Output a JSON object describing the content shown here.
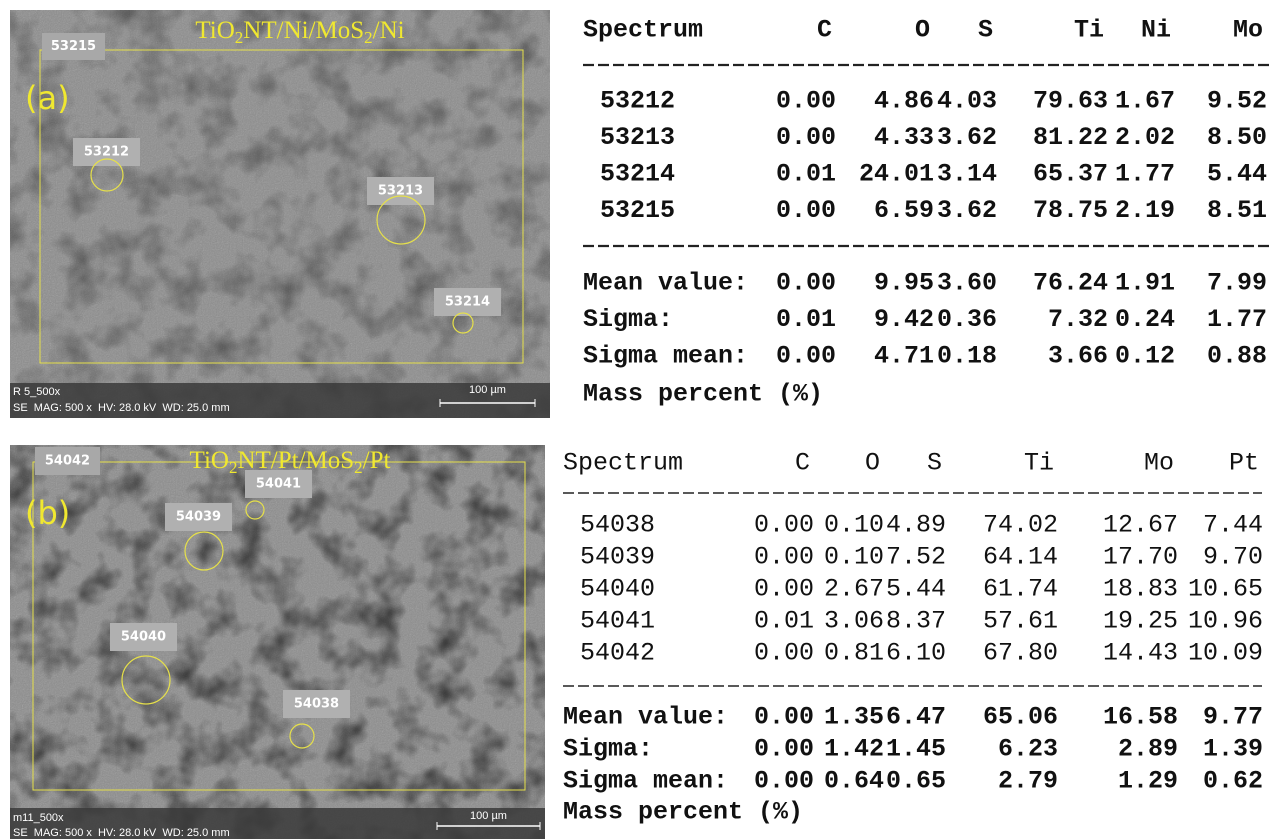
{
  "panels": [
    {
      "label": "(a)",
      "title": [
        "TiO",
        "2",
        "NT/Ni/MoS",
        "2",
        "/Ni"
      ],
      "area_label": "53215",
      "spots": [
        "53212",
        "53213",
        "53214"
      ],
      "scale_bar": "100 µm",
      "info": [
        "R 5_500x",
        "SE  MAG: 500 x  HV: 28.0 kV  WD: 25.0 mm"
      ],
      "table": {
        "columns": [
          "Spectrum",
          "C",
          "O",
          "S",
          "Ti",
          "Ni",
          "Mo"
        ],
        "rows": [
          [
            "53212",
            "0.00",
            "4.86",
            "4.03",
            "79.63",
            "1.67",
            "9.52"
          ],
          [
            "53213",
            "0.00",
            "4.33",
            "3.62",
            "81.22",
            "2.02",
            "8.50"
          ],
          [
            "53214",
            "0.01",
            "24.01",
            "3.14",
            "65.37",
            "1.77",
            "5.44"
          ],
          [
            "53215",
            "0.00",
            "6.59",
            "3.62",
            "78.75",
            "2.19",
            "8.51"
          ]
        ],
        "stats": [
          [
            "Mean value:",
            "0.00",
            "9.95",
            "3.60",
            "76.24",
            "1.91",
            "7.99"
          ],
          [
            "Sigma:",
            "0.01",
            "9.42",
            "0.36",
            "7.32",
            "0.24",
            "1.77"
          ],
          [
            "Sigma mean:",
            "0.00",
            "4.71",
            "0.18",
            "3.66",
            "0.12",
            "0.88"
          ]
        ],
        "footer": "Mass percent (%)"
      }
    },
    {
      "label": "(b)",
      "title": [
        "TiO",
        "2",
        "NT/Pt/MoS",
        "2",
        "/Pt"
      ],
      "area_label": "54042",
      "spots": [
        "54041",
        "54039",
        "54040",
        "54038"
      ],
      "scale_bar": "100 µm",
      "info": [
        "m11_500x",
        "SE  MAG: 500 x  HV: 28.0 kV  WD: 25.0 mm"
      ],
      "table": {
        "columns": [
          "Spectrum",
          "C",
          "O",
          "S",
          "Ti",
          "Mo",
          "Pt"
        ],
        "rows": [
          [
            "54038",
            "0.00",
            "0.10",
            "4.89",
            "74.02",
            "12.67",
            "7.44"
          ],
          [
            "54039",
            "0.00",
            "0.10",
            "7.52",
            "64.14",
            "17.70",
            "9.70"
          ],
          [
            "54040",
            "0.00",
            "2.67",
            "5.44",
            "61.74",
            "18.83",
            "10.65"
          ],
          [
            "54041",
            "0.01",
            "3.06",
            "8.37",
            "57.61",
            "19.25",
            "10.96"
          ],
          [
            "54042",
            "0.00",
            "0.81",
            "6.10",
            "67.80",
            "14.43",
            "10.09"
          ]
        ],
        "stats": [
          [
            "Mean value:",
            "0.00",
            "1.35",
            "6.47",
            "65.06",
            "16.58",
            "9.77"
          ],
          [
            "Sigma:",
            "0.00",
            "1.42",
            "1.45",
            "6.23",
            "2.89",
            "1.39"
          ],
          [
            "Sigma mean:",
            "0.00",
            "0.64",
            "0.65",
            "2.79",
            "1.29",
            "0.62"
          ]
        ],
        "footer": "Mass percent (%)"
      }
    }
  ]
}
